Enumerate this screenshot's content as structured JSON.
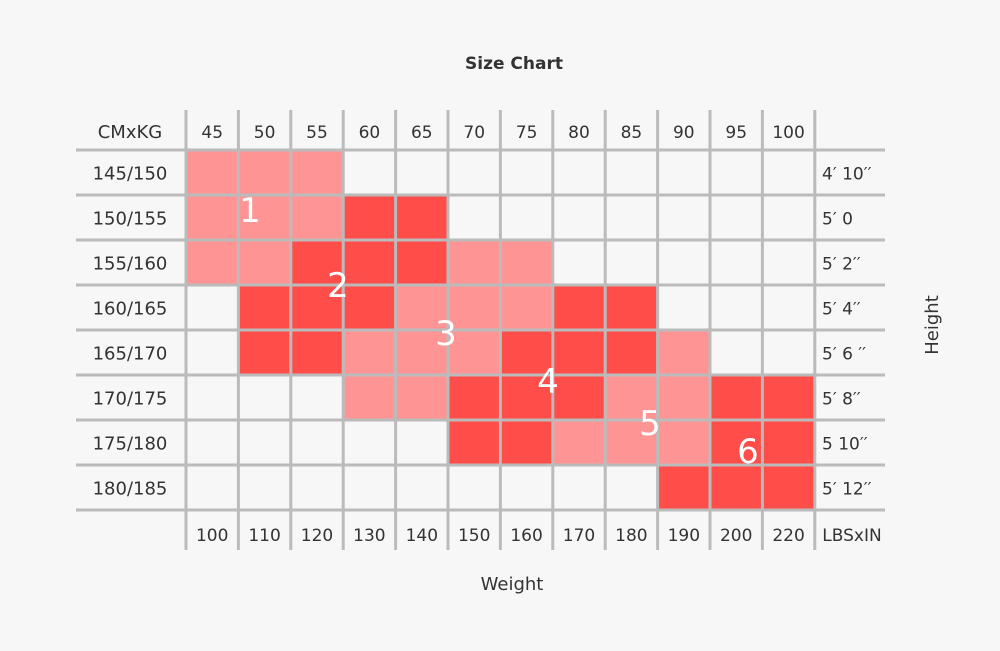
{
  "chart_data": {
    "type": "table",
    "title": "Size Chart",
    "xlabel": "Weight",
    "ylabel": "Height",
    "corner_top_left": "CMxKG",
    "corner_bottom_right": "LBSxIN",
    "kg_columns": [
      "45",
      "50",
      "55",
      "60",
      "65",
      "70",
      "75",
      "80",
      "85",
      "90",
      "95",
      "100"
    ],
    "lbs_columns": [
      "100",
      "110",
      "120",
      "130",
      "140",
      "150",
      "160",
      "170",
      "180",
      "190",
      "200",
      "220"
    ],
    "cm_rows": [
      "145/150",
      "150/155",
      "155/160",
      "160/165",
      "165/170",
      "170/175",
      "175/180",
      "180/185"
    ],
    "in_rows": [
      "4′ 10′′",
      "5′ 0",
      "5′ 2′′",
      "5′ 4′′",
      "5′ 6 ′′",
      "5′ 8′′",
      "5 10′′",
      "5′ 12′′"
    ],
    "colors": {
      "light": "#ff9494",
      "dark": "#ff4d4a",
      "grid": "#bbbbbb",
      "background": "#f7f7f7"
    },
    "sizes": [
      {
        "label": "1",
        "shade": "light",
        "cells": [
          {
            "row": "145/150",
            "kg": [
              "45",
              "55"
            ]
          },
          {
            "row": "150/155",
            "kg": [
              "45",
              "55"
            ]
          },
          {
            "row": "155/160",
            "kg": [
              "45",
              "50"
            ]
          }
        ]
      },
      {
        "label": "2",
        "shade": "dark",
        "cells": [
          {
            "row": "150/155",
            "kg": [
              "60",
              "65"
            ]
          },
          {
            "row": "155/160",
            "kg": [
              "55",
              "65"
            ]
          },
          {
            "row": "160/165",
            "kg": [
              "50",
              "60"
            ]
          },
          {
            "row": "165/170",
            "kg": [
              "50",
              "55"
            ]
          }
        ]
      },
      {
        "label": "3",
        "shade": "light",
        "cells": [
          {
            "row": "155/160",
            "kg": [
              "70",
              "75"
            ]
          },
          {
            "row": "160/165",
            "kg": [
              "65",
              "75"
            ]
          },
          {
            "row": "165/170",
            "kg": [
              "60",
              "70"
            ]
          },
          {
            "row": "170/175",
            "kg": [
              "60",
              "65"
            ]
          }
        ]
      },
      {
        "label": "4",
        "shade": "dark",
        "cells": [
          {
            "row": "160/165",
            "kg": [
              "80",
              "85"
            ]
          },
          {
            "row": "165/170",
            "kg": [
              "75",
              "85"
            ]
          },
          {
            "row": "170/175",
            "kg": [
              "70",
              "80"
            ]
          },
          {
            "row": "175/180",
            "kg": [
              "70",
              "75"
            ]
          }
        ]
      },
      {
        "label": "5",
        "shade": "light",
        "cells": [
          {
            "row": "165/170",
            "kg": [
              "90",
              "90"
            ]
          },
          {
            "row": "170/175",
            "kg": [
              "85",
              "90"
            ]
          },
          {
            "row": "175/180",
            "kg": [
              "80",
              "90"
            ]
          }
        ]
      },
      {
        "label": "6",
        "shade": "dark",
        "cells": [
          {
            "row": "170/175",
            "kg": [
              "95",
              "100"
            ]
          },
          {
            "row": "175/180",
            "kg": [
              "95",
              "100"
            ]
          },
          {
            "row": "180/185",
            "kg": [
              "90",
              "100"
            ]
          }
        ]
      }
    ]
  }
}
